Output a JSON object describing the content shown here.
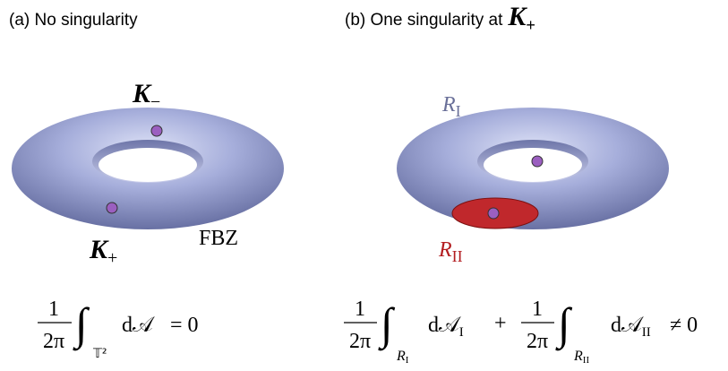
{
  "panels": [
    {
      "title": "(a) No singularity",
      "labels": [
        {
          "symbol": "K",
          "subscript": "−"
        },
        {
          "symbol": "K",
          "subscript": "+"
        },
        {
          "text": "FBZ"
        }
      ],
      "equation": {
        "terms": [
          {
            "num": "1",
            "den": "2π",
            "integral": "∫",
            "domain": "𝕋²",
            "differential": "d𝒜"
          }
        ],
        "rhs": "= 0"
      }
    },
    {
      "title": "(b) One singularity at",
      "title_symbol": "K",
      "title_subscript": "+",
      "labels": [
        {
          "symbol": "R",
          "subscript": "I"
        },
        {
          "symbol": "R",
          "subscript": "II"
        }
      ],
      "equation": {
        "terms": [
          {
            "num": "1",
            "den": "2π",
            "integral": "∫",
            "domain": {
              "symbol": "R",
              "subscript": "I"
            },
            "differential": "d𝒜",
            "differential_sub": "I"
          },
          {
            "num": "1",
            "den": "2π",
            "integral": "∫",
            "domain": {
              "symbol": "R",
              "subscript": "II"
            },
            "differential": "d𝒜",
            "differential_sub": "II"
          }
        ],
        "operator": "+",
        "rhs": "≠ 0"
      }
    }
  ]
}
